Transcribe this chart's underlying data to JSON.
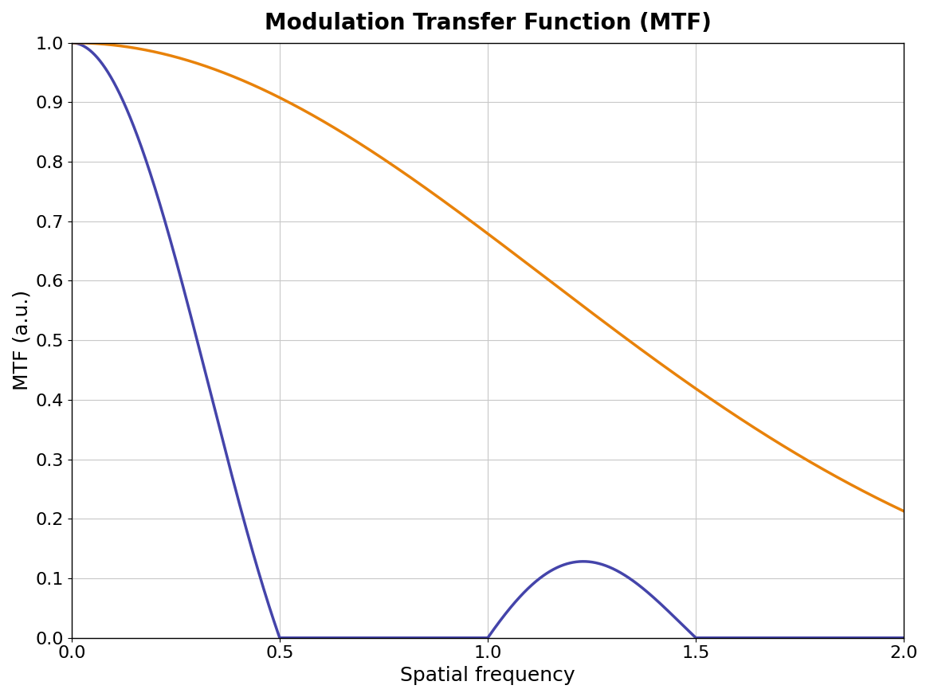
{
  "title": "Modulation Transfer Function (MTF)",
  "xlabel": "Spatial frequency",
  "ylabel": "MTF (a.u.)",
  "xlim": [
    0,
    2
  ],
  "ylim": [
    0,
    1
  ],
  "xticks": [
    0,
    0.5,
    1,
    1.5,
    2
  ],
  "yticks": [
    0,
    0.1,
    0.2,
    0.3,
    0.4,
    0.5,
    0.6,
    0.7,
    0.8,
    0.9,
    1.0
  ],
  "blue_color": "#4444AA",
  "orange_color": "#E8820A",
  "line_width": 2.5,
  "blue_cutoff": 0.5,
  "orange_sigma": 0.28,
  "title_fontsize": 20,
  "label_fontsize": 18,
  "tick_fontsize": 16,
  "grid_color": "#C8C8C8",
  "background_color": "#FFFFFF"
}
